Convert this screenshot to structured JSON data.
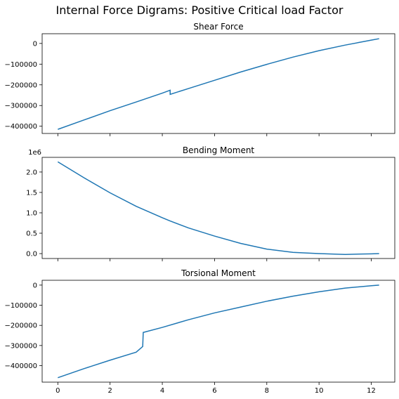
{
  "figure": {
    "suptitle": "Internal Force Digrams: Positive Critical load Factor",
    "line_color": "#1f77b4"
  },
  "chart_data": [
    {
      "type": "line",
      "title": "Shear Force",
      "xlabel": "",
      "ylabel": "",
      "xlim": [
        -0.6,
        12.9
      ],
      "ylim": [
        -435000,
        47000
      ],
      "x_ticks": [
        0,
        2,
        4,
        6,
        8,
        10,
        12
      ],
      "x_tick_labels_shown": false,
      "y_ticks": [
        {
          "value": 0,
          "label": "0"
        },
        {
          "value": -100000,
          "label": "−100000"
        },
        {
          "value": -200000,
          "label": "−200000"
        },
        {
          "value": -300000,
          "label": "−300000"
        },
        {
          "value": -400000,
          "label": "−400000"
        }
      ],
      "offset_text": "",
      "series": [
        {
          "x": [
            0,
            1,
            2,
            3,
            4,
            4.3,
            4.3,
            5,
            6,
            7,
            8,
            9,
            10,
            11,
            11.5,
            12,
            12.3
          ],
          "y": [
            -415000,
            -370000,
            -325000,
            -283000,
            -240000,
            -226000,
            -246000,
            -218000,
            -178000,
            -138000,
            -101000,
            -66000,
            -35000,
            -8000,
            4000,
            16000,
            23000
          ]
        }
      ]
    },
    {
      "type": "line",
      "title": "Bending Moment",
      "xlabel": "",
      "ylabel": "",
      "xlim": [
        -0.6,
        12.9
      ],
      "ylim": [
        -0.12,
        2.36
      ],
      "x_ticks": [
        0,
        2,
        4,
        6,
        8,
        10,
        12
      ],
      "x_tick_labels_shown": false,
      "y_ticks": [
        {
          "value": 0.0,
          "label": "0.0"
        },
        {
          "value": 0.5,
          "label": "0.5"
        },
        {
          "value": 1.0,
          "label": "1.0"
        },
        {
          "value": 1.5,
          "label": "1.5"
        },
        {
          "value": 2.0,
          "label": "2.0"
        }
      ],
      "offset_text": "1e6",
      "series": [
        {
          "x": [
            0,
            1,
            2,
            3,
            4,
            4.3,
            5,
            6,
            7,
            8,
            9,
            10,
            11,
            12,
            12.3
          ],
          "y": [
            2.25,
            1.86,
            1.49,
            1.16,
            0.88,
            0.8,
            0.63,
            0.43,
            0.25,
            0.11,
            0.03,
            0.0,
            -0.02,
            -0.005,
            0.0
          ]
        }
      ]
    },
    {
      "type": "line",
      "title": "Torsional Moment",
      "xlabel": "",
      "ylabel": "",
      "xlim": [
        -0.6,
        12.9
      ],
      "ylim": [
        -482000,
        24000
      ],
      "x_ticks": [
        0,
        2,
        4,
        6,
        8,
        10,
        12
      ],
      "x_tick_labels_shown": true,
      "x_tick_labels": [
        "0",
        "2",
        "4",
        "6",
        "8",
        "10",
        "12"
      ],
      "y_ticks": [
        {
          "value": 0,
          "label": "0"
        },
        {
          "value": -100000,
          "label": "−100000"
        },
        {
          "value": -200000,
          "label": "−200000"
        },
        {
          "value": -300000,
          "label": "−300000"
        },
        {
          "value": -400000,
          "label": "−400000"
        }
      ],
      "offset_text": "",
      "series": [
        {
          "x": [
            0,
            1,
            2,
            3,
            3.25,
            3.27,
            4,
            5,
            6,
            7,
            8,
            9,
            10,
            11,
            12,
            12.3
          ],
          "y": [
            -460000,
            -415000,
            -373000,
            -333000,
            -305000,
            -235000,
            -210000,
            -172000,
            -138000,
            -109000,
            -80000,
            -55000,
            -33000,
            -15000,
            -3000,
            0
          ]
        }
      ]
    }
  ]
}
